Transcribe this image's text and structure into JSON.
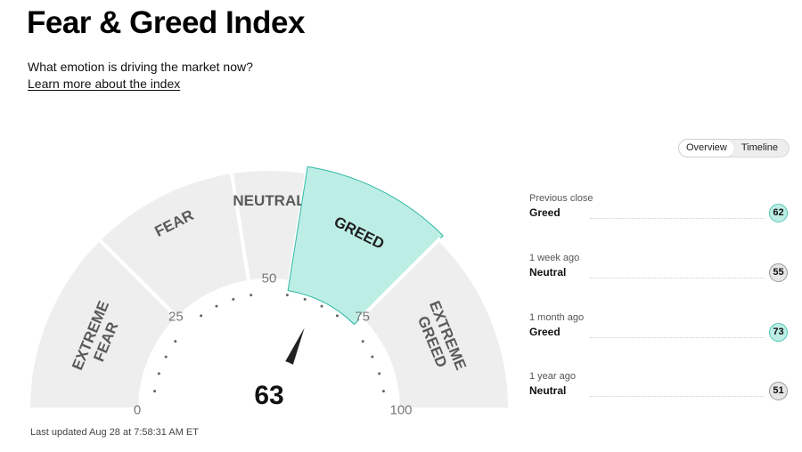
{
  "page": {
    "title": "Fear & Greed Index",
    "subtitle": "What emotion is driving the market now?",
    "learn_more": "Learn more about the index",
    "last_updated": "Last updated Aug 28 at 7:58:31 AM ET"
  },
  "toggle": {
    "overview": "Overview",
    "timeline": "Timeline",
    "active": "overview"
  },
  "gauge": {
    "value": 63,
    "scale_min": 0,
    "scale_max": 100,
    "scale_labels": [
      "0",
      "25",
      "50",
      "75",
      "100"
    ],
    "active_segment": 3,
    "segments": [
      {
        "line1": "EXTREME",
        "line2": "FEAR",
        "from": 0,
        "to": 25
      },
      {
        "line1": "FEAR",
        "line2": "",
        "from": 25,
        "to": 45
      },
      {
        "line1": "NEUTRAL",
        "line2": "",
        "from": 45,
        "to": 55
      },
      {
        "line1": "GREED",
        "line2": "",
        "from": 55,
        "to": 75
      },
      {
        "line1": "EXTREME",
        "line2": "GREED",
        "from": 75,
        "to": 100
      }
    ]
  },
  "history": [
    {
      "label": "Previous close",
      "status": "Greed",
      "value": "62",
      "level": "greed"
    },
    {
      "label": "1 week ago",
      "status": "Neutral",
      "value": "55",
      "level": "neutral"
    },
    {
      "label": "1 month ago",
      "status": "Greed",
      "value": "73",
      "level": "greed"
    },
    {
      "label": "1 year ago",
      "status": "Neutral",
      "value": "51",
      "level": "neutral"
    }
  ],
  "colors": {
    "segment_fill": "#eeeeee",
    "active_fill": "#bdeee6",
    "active_stroke": "#2fb8a4",
    "needle": "#222222",
    "greed_circle": "#bdeee6",
    "greed_circle_border": "#52c9b5",
    "neutral_circle": "#e6e6e6",
    "neutral_circle_border": "#9a9a9a",
    "segment_text": "#5a5a5a"
  }
}
